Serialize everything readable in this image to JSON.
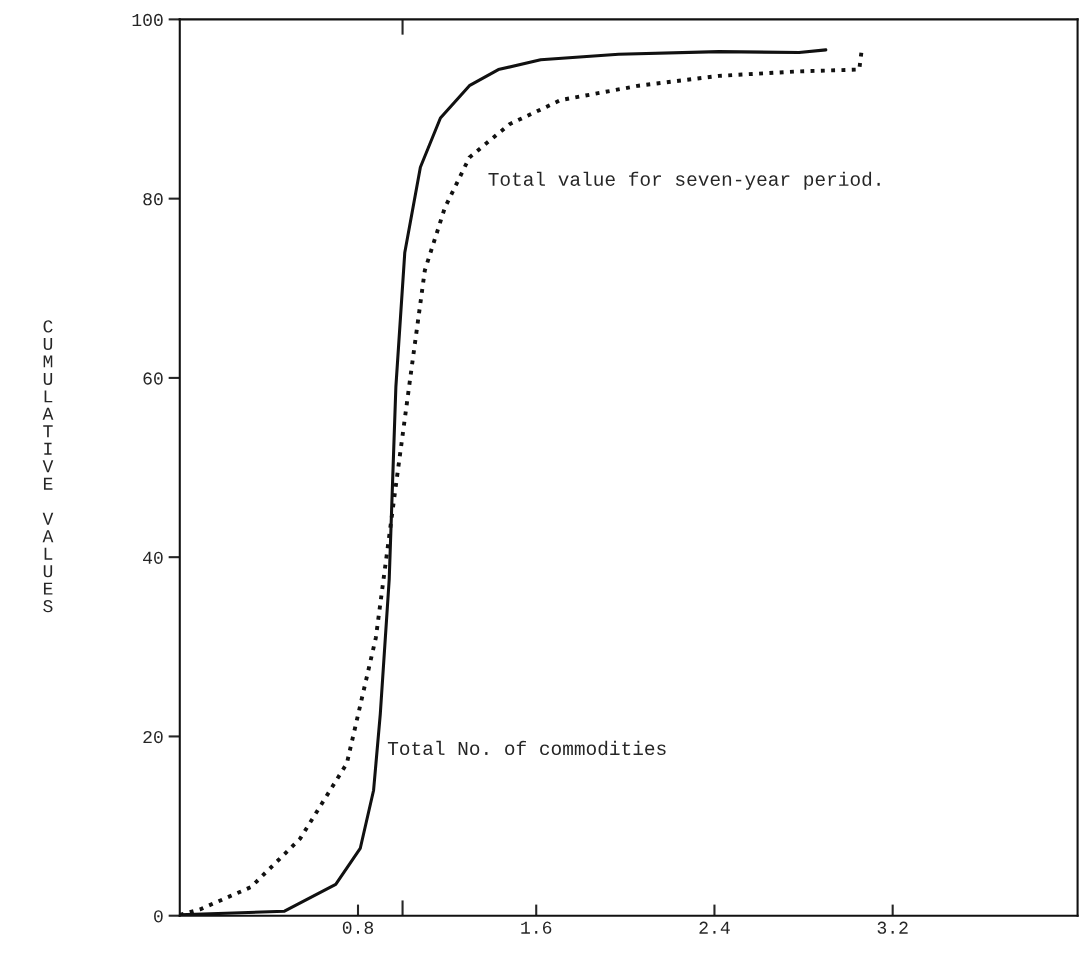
{
  "chart_data": {
    "type": "line",
    "ylabel": "CUMULATIVE VALUES",
    "xlim": [
      0,
      4.03
    ],
    "ylim": [
      0,
      100
    ],
    "xticks": [
      0.8,
      {
        "value": 1.0,
        "label": null
      },
      1.6,
      2.4,
      3.2
    ],
    "yticks": [
      0,
      20,
      40,
      60,
      80,
      100
    ],
    "grid": false,
    "legend": false,
    "series": [
      {
        "color": "#111111",
        "line_style": "solid",
        "x": [
          0,
          0.47,
          0.7,
          0.81,
          0.87,
          0.9,
          0.94,
          0.97,
          1.01,
          1.08,
          1.17,
          1.3,
          1.43,
          1.62,
          1.97,
          2.42,
          2.78,
          2.9
        ],
        "values": [
          0.1,
          0.5,
          3.5,
          7.5,
          14,
          22.5,
          37.5,
          59,
          74,
          83.5,
          89,
          92.6,
          94.4,
          95.5,
          96.1,
          96.4,
          96.3,
          96.6
        ]
      },
      {
        "color": "#111111",
        "line_style": "dotted",
        "x": [
          0,
          0.09,
          0.32,
          0.54,
          0.75,
          0.88,
          0.97,
          1.04,
          1.1,
          1.19,
          1.3,
          1.48,
          1.71,
          2.06,
          2.42,
          2.78,
          3.05,
          3.06
        ],
        "values": [
          0.1,
          0.7,
          3.2,
          8.6,
          17,
          31,
          48,
          61,
          72,
          79,
          84.6,
          88.3,
          91,
          92.6,
          93.7,
          94.2,
          94.4,
          96.4
        ]
      }
    ],
    "annotations": [
      "Total value for seven-year period.",
      "Total No. of commodities"
    ]
  }
}
